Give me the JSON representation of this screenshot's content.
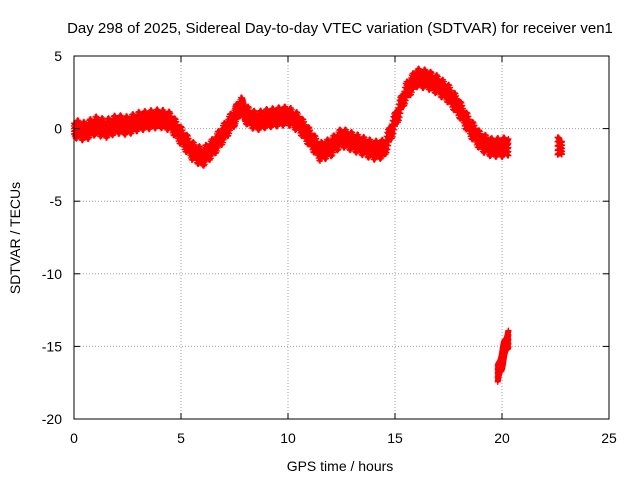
{
  "chart_data": {
    "type": "scatter",
    "title": "Day 298 of 2025, Sidereal Day-to-day VTEC variation (SDTVAR) for receiver ven1",
    "xlabel": "GPS time / hours",
    "ylabel": "SDTVAR / TECUs",
    "xlim": [
      0,
      25
    ],
    "ylim": [
      -20,
      5
    ],
    "xticks": [
      0,
      5,
      10,
      15,
      20,
      25
    ],
    "yticks": [
      5,
      0,
      -5,
      -10,
      -15,
      -20
    ],
    "grid": true,
    "marker": "+",
    "series_color": "#ff0000",
    "series": [
      {
        "name": "segment-1",
        "x": [
          0.0,
          0.5,
          1.0,
          1.5,
          2.0,
          2.5,
          3.0,
          3.5,
          4.0,
          4.5,
          5.0,
          5.5,
          6.0,
          6.5,
          7.0,
          7.5,
          7.8,
          8.0,
          8.5,
          9.0,
          9.5,
          10.0,
          10.5,
          11.0,
          11.5,
          12.0,
          12.5,
          13.0,
          13.5,
          14.0,
          14.5,
          15.0,
          15.5,
          16.0,
          16.5,
          17.0,
          17.5,
          18.0,
          18.5,
          19.0,
          19.5,
          20.0,
          20.3
        ],
        "y": [
          0.0,
          -0.2,
          0.2,
          0.0,
          0.3,
          0.2,
          0.5,
          0.6,
          0.7,
          0.5,
          -0.5,
          -1.5,
          -2.0,
          -1.3,
          -0.3,
          0.8,
          1.6,
          1.0,
          0.5,
          0.7,
          0.8,
          0.9,
          0.4,
          -0.6,
          -1.6,
          -1.3,
          -0.6,
          -0.9,
          -1.2,
          -1.5,
          -1.4,
          0.5,
          2.5,
          3.5,
          3.4,
          3.0,
          2.4,
          1.4,
          0.1,
          -0.9,
          -1.3,
          -1.3,
          -1.2
        ]
      },
      {
        "name": "segment-2",
        "x": [
          22.6,
          22.7,
          22.8
        ],
        "y": [
          -1.2,
          -1.4,
          -1.2
        ]
      },
      {
        "name": "segment-3",
        "x": [
          19.8,
          19.9,
          20.0,
          20.1,
          20.2,
          20.3
        ],
        "y": [
          -17.0,
          -16.4,
          -15.9,
          -15.3,
          -14.8,
          -14.4
        ]
      }
    ]
  }
}
